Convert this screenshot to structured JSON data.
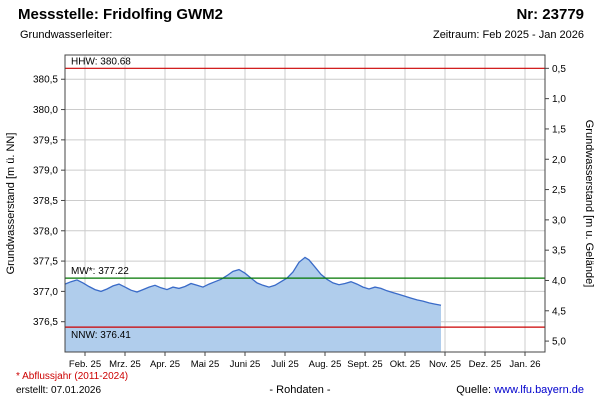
{
  "header": {
    "station_label": "Messstelle: Fridolfing GWM2",
    "number_label": "Nr: 23779",
    "aquifer_label": "Grundwasserleiter:",
    "period_label": "Zeitraum: Feb 2025 - Jan 2026"
  },
  "footer": {
    "abflussjahr_note": "* Abflussjahr (2011-2024)",
    "created_label": "erstellt: 07.01.2026",
    "data_type_label": "- Rohdaten -",
    "source_label": "Quelle:",
    "source_link": "www.lfu.bayern.de"
  },
  "chart_data": {
    "type": "area",
    "title": "",
    "ylabel_left": "Grundwasserstand [m ü. NN]",
    "ylabel_right": "Grundwasserstand [m u. Gelände]",
    "ylim_left": [
      376.0,
      380.9
    ],
    "ylim_right": [
      5.18,
      0.28
    ],
    "months_total": 12,
    "grid": true,
    "y_ticks_left": [
      {
        "value": 380.5,
        "label": "380,5"
      },
      {
        "value": 380.0,
        "label": "380,0"
      },
      {
        "value": 379.5,
        "label": "379,5"
      },
      {
        "value": 379.0,
        "label": "379,0"
      },
      {
        "value": 378.5,
        "label": "378,5"
      },
      {
        "value": 378.0,
        "label": "378,0"
      },
      {
        "value": 377.5,
        "label": "377,5"
      },
      {
        "value": 377.0,
        "label": "377,0"
      },
      {
        "value": 376.5,
        "label": "376,5"
      }
    ],
    "y_ticks_right": [
      {
        "value": 0.5,
        "label": "0,5"
      },
      {
        "value": 1.0,
        "label": "1,0"
      },
      {
        "value": 1.5,
        "label": "1,5"
      },
      {
        "value": 2.0,
        "label": "2,0"
      },
      {
        "value": 2.5,
        "label": "2,5"
      },
      {
        "value": 3.0,
        "label": "3,0"
      },
      {
        "value": 3.5,
        "label": "3,5"
      },
      {
        "value": 4.0,
        "label": "4,0"
      },
      {
        "value": 4.5,
        "label": "4,5"
      },
      {
        "value": 5.0,
        "label": "5,0"
      }
    ],
    "x_tick_labels": [
      "Feb. 25",
      "Mrz. 25",
      "Apr. 25",
      "Mai 25",
      "Juni 25",
      "Juli 25",
      "Aug. 25",
      "Sept. 25",
      "Okt. 25",
      "Nov. 25",
      "Dez. 25",
      "Jan. 26"
    ],
    "reference_lines": [
      {
        "id": "HHW",
        "label": "HHW: 380.68",
        "value": 380.68,
        "color": "#cc0000",
        "label_position": "above"
      },
      {
        "id": "MW",
        "label": "MW*: 377.22",
        "value": 377.22,
        "color": "#007700",
        "label_position": "above"
      },
      {
        "id": "NNW",
        "label": "NNW: 376.41",
        "value": 376.41,
        "color": "#cc0000",
        "label_position": "below"
      }
    ],
    "series": [
      {
        "name": "Rohdaten",
        "line_color": "#3a6bc8",
        "fill_color": "#b0cdec",
        "x_months_from_feb": [
          0,
          0.15,
          0.3,
          0.45,
          0.6,
          0.75,
          0.9,
          1.05,
          1.2,
          1.35,
          1.5,
          1.65,
          1.8,
          1.95,
          2.1,
          2.25,
          2.4,
          2.55,
          2.7,
          2.85,
          3.0,
          3.15,
          3.3,
          3.45,
          3.6,
          3.75,
          3.9,
          4.05,
          4.2,
          4.35,
          4.5,
          4.65,
          4.8,
          4.95,
          5.1,
          5.25,
          5.4,
          5.55,
          5.7,
          5.85,
          6.0,
          6.1,
          6.25,
          6.4,
          6.55,
          6.7,
          6.85,
          7.0,
          7.15,
          7.3,
          7.45,
          7.6,
          7.75,
          7.9,
          8.05,
          8.2,
          8.35,
          8.5,
          8.65,
          8.8,
          8.95,
          9.1,
          9.25,
          9.4
        ],
        "values": [
          377.12,
          377.16,
          377.19,
          377.14,
          377.08,
          377.03,
          377.0,
          377.04,
          377.09,
          377.12,
          377.07,
          377.02,
          376.99,
          377.03,
          377.07,
          377.1,
          377.06,
          377.03,
          377.07,
          377.05,
          377.08,
          377.13,
          377.1,
          377.07,
          377.12,
          377.16,
          377.2,
          377.26,
          377.33,
          377.36,
          377.3,
          377.22,
          377.14,
          377.1,
          377.07,
          377.1,
          377.16,
          377.22,
          377.32,
          377.48,
          377.56,
          377.52,
          377.4,
          377.28,
          377.2,
          377.14,
          377.11,
          377.13,
          377.16,
          377.12,
          377.07,
          377.04,
          377.07,
          377.05,
          377.01,
          376.98,
          376.95,
          376.92,
          376.89,
          376.86,
          376.84,
          376.81,
          376.79,
          376.77
        ]
      }
    ],
    "colors": {
      "grid": "#cccccc",
      "axis": "#444444",
      "background": "#ffffff"
    }
  }
}
